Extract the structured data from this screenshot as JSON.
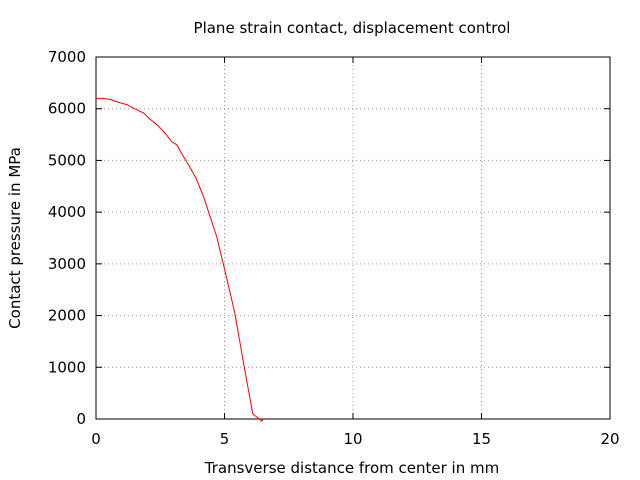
{
  "chart_data": {
    "type": "line",
    "title": "Plane strain contact, displacement control",
    "xlabel": "Transverse distance from center in mm",
    "ylabel": "Contact pressure in MPa",
    "xlim": [
      0,
      20
    ],
    "ylim": [
      0,
      7000
    ],
    "xticks": [
      0,
      5,
      10,
      15,
      20
    ],
    "yticks": [
      0,
      1000,
      2000,
      3000,
      4000,
      5000,
      6000,
      7000
    ],
    "grid": true,
    "series": [
      {
        "color": "#ff0000",
        "x": [
          0,
          0.25,
          0.55,
          0.9,
          1.2,
          1.5,
          1.85,
          2.1,
          2.4,
          2.7,
          2.95,
          3.15,
          3.35,
          3.6,
          3.9,
          4.2,
          4.7,
          5.05,
          5.4,
          5.75,
          6.1,
          6.45,
          6.5
        ],
        "y": [
          6200,
          6200,
          6180,
          6120,
          6080,
          6000,
          5920,
          5800,
          5680,
          5520,
          5360,
          5300,
          5120,
          4920,
          4650,
          4280,
          3520,
          2800,
          2050,
          1050,
          100,
          -40,
          0
        ]
      }
    ]
  }
}
